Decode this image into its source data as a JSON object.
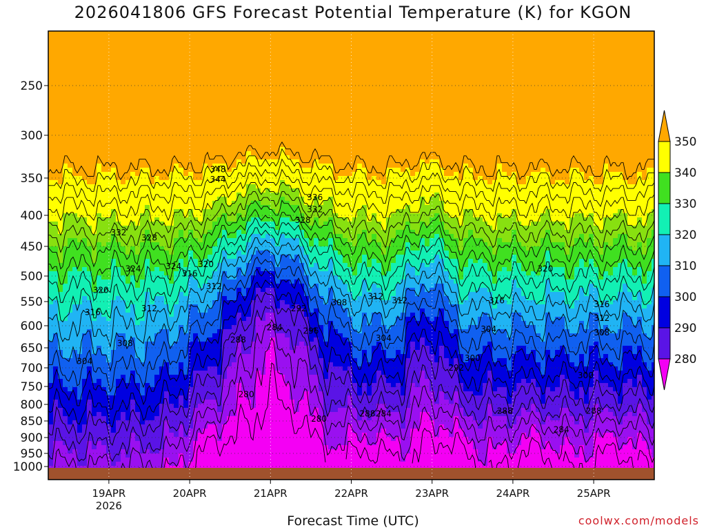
{
  "chart_data": {
    "type": "heatmap",
    "title": "2026041806 GFS Forecast Potential Temperature (K) for KGON",
    "xlabel": "Forecast Time (UTC)",
    "ylabel": "",
    "x_ticks": [
      {
        "label": "19APR",
        "sub": "2026",
        "t": 0
      },
      {
        "label": "20APR",
        "t": 1
      },
      {
        "label": "21APR",
        "t": 2
      },
      {
        "label": "22APR",
        "t": 3
      },
      {
        "label": "23APR",
        "t": 4
      },
      {
        "label": "24APR",
        "t": 5
      },
      {
        "label": "25APR",
        "t": 6
      }
    ],
    "y_ticks": [
      "250",
      "300",
      "350",
      "400",
      "450",
      "500",
      "550",
      "600",
      "650",
      "700",
      "750",
      "800",
      "850",
      "900",
      "950",
      "1000"
    ],
    "y_values": [
      250,
      300,
      350,
      400,
      450,
      500,
      550,
      600,
      650,
      700,
      750,
      800,
      850,
      900,
      950,
      1000
    ],
    "y_range_hpa": [
      200,
      1000
    ],
    "x_range_days": [
      -0.75,
      6.75
    ],
    "colorbar": {
      "levels": [
        "280",
        "290",
        "300",
        "310",
        "320",
        "330",
        "340",
        "350"
      ],
      "colors": [
        "#f400f4",
        "#9a10f0",
        "#5a14e6",
        "#0000e0",
        "#1060f0",
        "#20b4f4",
        "#12f0b4",
        "#40e020",
        "#88e010",
        "#ffff00",
        "#ffa800"
      ]
    },
    "contour_interval_K": 4,
    "contour_labels": [
      "332",
      "328",
      "324",
      "320",
      "316",
      "312",
      "308",
      "304",
      "300",
      "296",
      "292",
      "288",
      "284",
      "280",
      "348",
      "344",
      "336"
    ],
    "credit": "coolwx.com/models"
  }
}
